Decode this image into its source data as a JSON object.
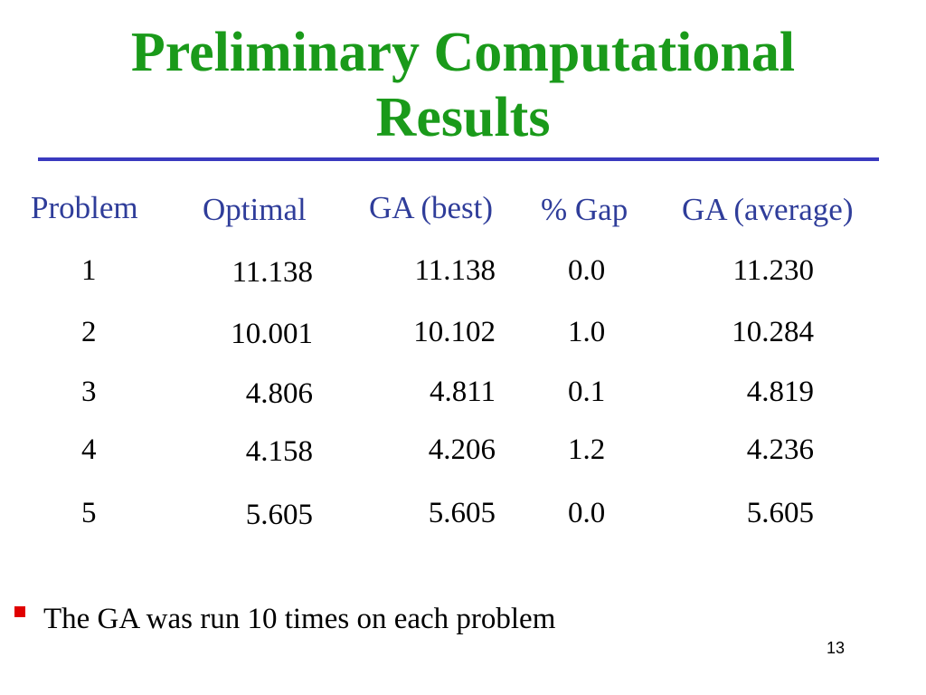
{
  "title_line1": "Preliminary Computational",
  "title_line2": "Results",
  "table": {
    "headers": [
      "Problem",
      "Optimal",
      "GA (best)",
      "% Gap",
      "GA (average)"
    ],
    "rows": [
      [
        "1",
        "11.138",
        "11.138",
        "0.0",
        "11.230"
      ],
      [
        "2",
        "10.001",
        "10.102",
        "1.0",
        "10.284"
      ],
      [
        "3",
        "4.806",
        "4.811",
        "0.1",
        "4.819"
      ],
      [
        "4",
        "4.158",
        "4.206",
        "1.2",
        "4.236"
      ],
      [
        "5",
        "5.605",
        "5.605",
        "0.0",
        "5.605"
      ]
    ]
  },
  "bullet_text": "The GA was run 10 times on each problem",
  "page_number": "13",
  "colors": {
    "title": "#1a9a1a",
    "header": "#2f3d9a",
    "rule": "#3a3abf",
    "bullet": "#e00000"
  }
}
